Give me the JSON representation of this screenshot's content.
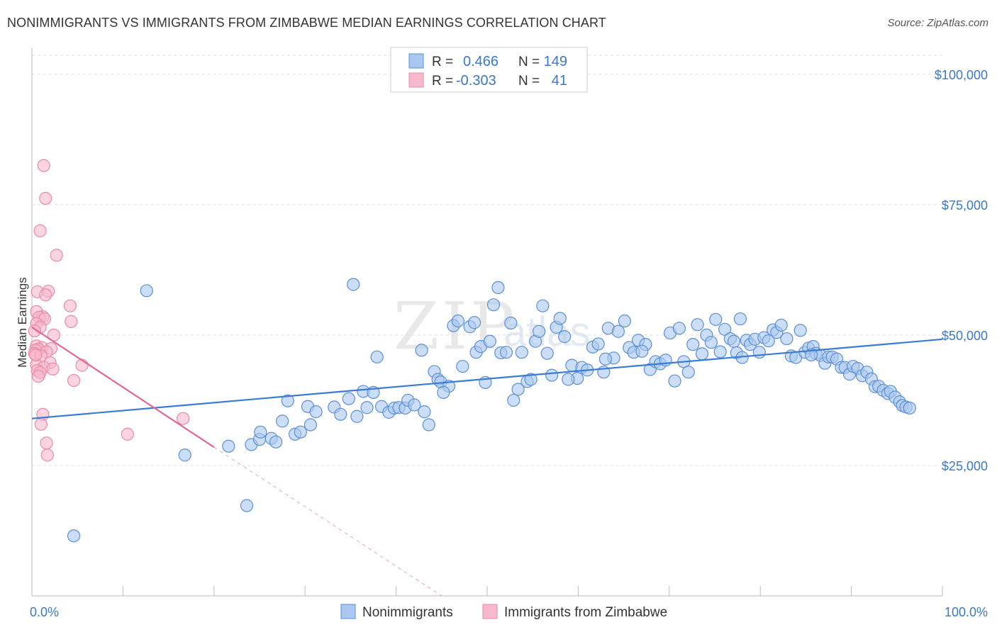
{
  "header": {
    "title": "NONIMMIGRANTS VS IMMIGRANTS FROM ZIMBABWE MEDIAN EARNINGS CORRELATION CHART",
    "source": "Source: ZipAtlas.com"
  },
  "legend": {
    "rows": [
      {
        "r_label": "R =",
        "r_value": "0.466",
        "n_label": "N =",
        "n_value": "149"
      },
      {
        "r_label": "R =",
        "r_value": "-0.303",
        "n_label": "N =",
        "n_value": "41"
      }
    ]
  },
  "watermark": {
    "zip": "ZIP",
    "atlas": "atlas"
  },
  "colors": {
    "blue_fill": "#aac8ef",
    "blue_stroke": "#5b8fd6",
    "blue_line": "#3a7bd5",
    "pink_fill": "#f6b8cb",
    "pink_stroke": "#e98aa8",
    "pink_line": "#e06890",
    "tick_text": "#3b78c8",
    "grid": "#dddddd"
  },
  "chart_data": {
    "type": "scatter",
    "title": "NONIMMIGRANTS VS IMMIGRANTS FROM ZIMBABWE MEDIAN EARNINGS CORRELATION CHART",
    "xlabel": "",
    "ylabel": "Median Earnings",
    "xlim": [
      0,
      100
    ],
    "ylim": [
      0,
      105000
    ],
    "y_ticks": [
      {
        "value": 25000,
        "label": "$25,000"
      },
      {
        "value": 50000,
        "label": "$50,000"
      },
      {
        "value": 75000,
        "label": "$75,000"
      },
      {
        "value": 100000,
        "label": "$100,000"
      }
    ],
    "x_tick_labels": [
      {
        "value": 0,
        "label": "0.0%"
      },
      {
        "value": 100,
        "label": "100.0%"
      }
    ],
    "grid": "horizontal dashed",
    "legend_placement": "top-center",
    "series": [
      {
        "name": "Nonimmigrants",
        "color": "#aac8ef",
        "trend": {
          "x0": 0,
          "y0": 34000,
          "x1": 100,
          "y1": 49200
        },
        "points": [
          [
            4.6,
            11500
          ],
          [
            12.6,
            58500
          ],
          [
            16.8,
            27000
          ],
          [
            21.6,
            28700
          ],
          [
            23.6,
            17300
          ],
          [
            24.1,
            29000
          ],
          [
            25.0,
            30000
          ],
          [
            25.1,
            31400
          ],
          [
            26.3,
            30200
          ],
          [
            26.8,
            29500
          ],
          [
            27.5,
            33500
          ],
          [
            28.1,
            37400
          ],
          [
            28.9,
            31000
          ],
          [
            29.5,
            31400
          ],
          [
            30.3,
            36300
          ],
          [
            30.6,
            32800
          ],
          [
            31.2,
            35300
          ],
          [
            33.2,
            36200
          ],
          [
            33.9,
            34800
          ],
          [
            34.8,
            37800
          ],
          [
            35.3,
            59700
          ],
          [
            35.7,
            34400
          ],
          [
            36.4,
            39200
          ],
          [
            36.8,
            36100
          ],
          [
            37.5,
            39000
          ],
          [
            37.9,
            45800
          ],
          [
            38.4,
            36300
          ],
          [
            39.2,
            35200
          ],
          [
            39.8,
            36000
          ],
          [
            40.3,
            36100
          ],
          [
            41.0,
            36000
          ],
          [
            41.3,
            37500
          ],
          [
            42.0,
            36600
          ],
          [
            42.8,
            47100
          ],
          [
            43.1,
            35300
          ],
          [
            43.6,
            32800
          ],
          [
            44.2,
            43000
          ],
          [
            44.6,
            41500
          ],
          [
            44.9,
            41000
          ],
          [
            45.8,
            40200
          ],
          [
            46.3,
            51800
          ],
          [
            46.8,
            52700
          ],
          [
            47.3,
            44000
          ],
          [
            48.1,
            51600
          ],
          [
            48.6,
            52400
          ],
          [
            48.8,
            46700
          ],
          [
            49.3,
            47800
          ],
          [
            49.8,
            40900
          ],
          [
            50.3,
            48800
          ],
          [
            50.7,
            55800
          ],
          [
            51.2,
            59100
          ],
          [
            51.5,
            46600
          ],
          [
            52.1,
            46700
          ],
          [
            52.6,
            52300
          ],
          [
            52.9,
            37500
          ],
          [
            53.4,
            39600
          ],
          [
            53.8,
            46700
          ],
          [
            54.4,
            41100
          ],
          [
            54.8,
            41500
          ],
          [
            55.3,
            48800
          ],
          [
            55.7,
            50700
          ],
          [
            56.1,
            55600
          ],
          [
            56.6,
            46500
          ],
          [
            57.1,
            42300
          ],
          [
            57.6,
            51500
          ],
          [
            58.0,
            53200
          ],
          [
            58.5,
            49700
          ],
          [
            59.3,
            44200
          ],
          [
            59.9,
            41700
          ],
          [
            60.4,
            43800
          ],
          [
            61.0,
            43300
          ],
          [
            61.6,
            47700
          ],
          [
            62.2,
            48300
          ],
          [
            62.8,
            42900
          ],
          [
            63.3,
            51300
          ],
          [
            63.9,
            45600
          ],
          [
            64.4,
            50700
          ],
          [
            65.1,
            52700
          ],
          [
            65.6,
            47600
          ],
          [
            66.1,
            46700
          ],
          [
            66.6,
            49000
          ],
          [
            67.4,
            48200
          ],
          [
            67.9,
            43400
          ],
          [
            68.5,
            44900
          ],
          [
            69.0,
            44500
          ],
          [
            69.6,
            45200
          ],
          [
            70.1,
            50400
          ],
          [
            70.6,
            41200
          ],
          [
            71.1,
            51300
          ],
          [
            71.6,
            44900
          ],
          [
            72.1,
            42900
          ],
          [
            72.6,
            48200
          ],
          [
            73.1,
            52000
          ],
          [
            73.6,
            46400
          ],
          [
            74.1,
            50000
          ],
          [
            74.6,
            48600
          ],
          [
            75.1,
            53000
          ],
          [
            75.6,
            46800
          ],
          [
            76.1,
            51100
          ],
          [
            76.7,
            49300
          ],
          [
            77.1,
            48800
          ],
          [
            77.4,
            46600
          ],
          [
            78.0,
            45700
          ],
          [
            78.5,
            49000
          ],
          [
            78.9,
            48200
          ],
          [
            79.4,
            49200
          ],
          [
            79.9,
            46700
          ],
          [
            80.4,
            49500
          ],
          [
            80.9,
            48900
          ],
          [
            81.4,
            51000
          ],
          [
            81.8,
            50500
          ],
          [
            82.3,
            51900
          ],
          [
            82.9,
            49300
          ],
          [
            83.4,
            46000
          ],
          [
            83.9,
            45700
          ],
          [
            84.4,
            50900
          ],
          [
            84.9,
            46700
          ],
          [
            85.3,
            47500
          ],
          [
            85.8,
            47800
          ],
          [
            86.1,
            46500
          ],
          [
            86.6,
            46100
          ],
          [
            87.1,
            44600
          ],
          [
            87.5,
            45800
          ],
          [
            87.9,
            45800
          ],
          [
            88.4,
            45400
          ],
          [
            88.9,
            43800
          ],
          [
            89.3,
            43800
          ],
          [
            89.8,
            42500
          ],
          [
            90.2,
            44000
          ],
          [
            90.7,
            43600
          ],
          [
            91.2,
            42200
          ],
          [
            91.7,
            42900
          ],
          [
            92.2,
            41600
          ],
          [
            92.6,
            40100
          ],
          [
            93.0,
            40200
          ],
          [
            93.5,
            39400
          ],
          [
            94.0,
            38800
          ],
          [
            94.3,
            39200
          ],
          [
            94.8,
            38100
          ],
          [
            95.3,
            37200
          ],
          [
            95.6,
            36500
          ],
          [
            96.0,
            36200
          ],
          [
            96.4,
            36000
          ],
          [
            63.0,
            45400
          ],
          [
            58.9,
            41500
          ],
          [
            45.2,
            39000
          ],
          [
            67.0,
            46900
          ],
          [
            77.8,
            53100
          ],
          [
            85.6,
            46200
          ]
        ]
      },
      {
        "name": "Immigrants from Zimbabwe",
        "color": "#f6b8cb",
        "trend": {
          "x0": 0,
          "y0": 51500,
          "x1": 20.0,
          "y1": 28500,
          "dashed_to": {
            "x": 45.0,
            "y": 0
          }
        },
        "points": [
          [
            1.3,
            82500
          ],
          [
            1.5,
            76200
          ],
          [
            0.9,
            70000
          ],
          [
            2.7,
            65300
          ],
          [
            0.6,
            58300
          ],
          [
            1.8,
            58400
          ],
          [
            1.5,
            57700
          ],
          [
            4.2,
            55600
          ],
          [
            0.5,
            54500
          ],
          [
            1.2,
            53500
          ],
          [
            0.8,
            53400
          ],
          [
            1.4,
            53100
          ],
          [
            4.3,
            52600
          ],
          [
            0.5,
            52200
          ],
          [
            0.9,
            51500
          ],
          [
            0.3,
            50800
          ],
          [
            2.4,
            50000
          ],
          [
            0.5,
            47900
          ],
          [
            1.1,
            47600
          ],
          [
            2.1,
            47400
          ],
          [
            0.7,
            47300
          ],
          [
            0.4,
            47100
          ],
          [
            1.6,
            46800
          ],
          [
            0.3,
            46500
          ],
          [
            1.0,
            46000
          ],
          [
            2.0,
            44700
          ],
          [
            0.5,
            44300
          ],
          [
            5.5,
            44200
          ],
          [
            1.3,
            43800
          ],
          [
            2.3,
            43500
          ],
          [
            0.6,
            43200
          ],
          [
            0.9,
            42800
          ],
          [
            0.7,
            42100
          ],
          [
            4.6,
            41300
          ],
          [
            1.2,
            34800
          ],
          [
            1.0,
            32900
          ],
          [
            16.6,
            34000
          ],
          [
            10.5,
            31000
          ],
          [
            1.6,
            29300
          ],
          [
            1.7,
            27000
          ],
          [
            0.4,
            46200
          ]
        ]
      }
    ]
  }
}
